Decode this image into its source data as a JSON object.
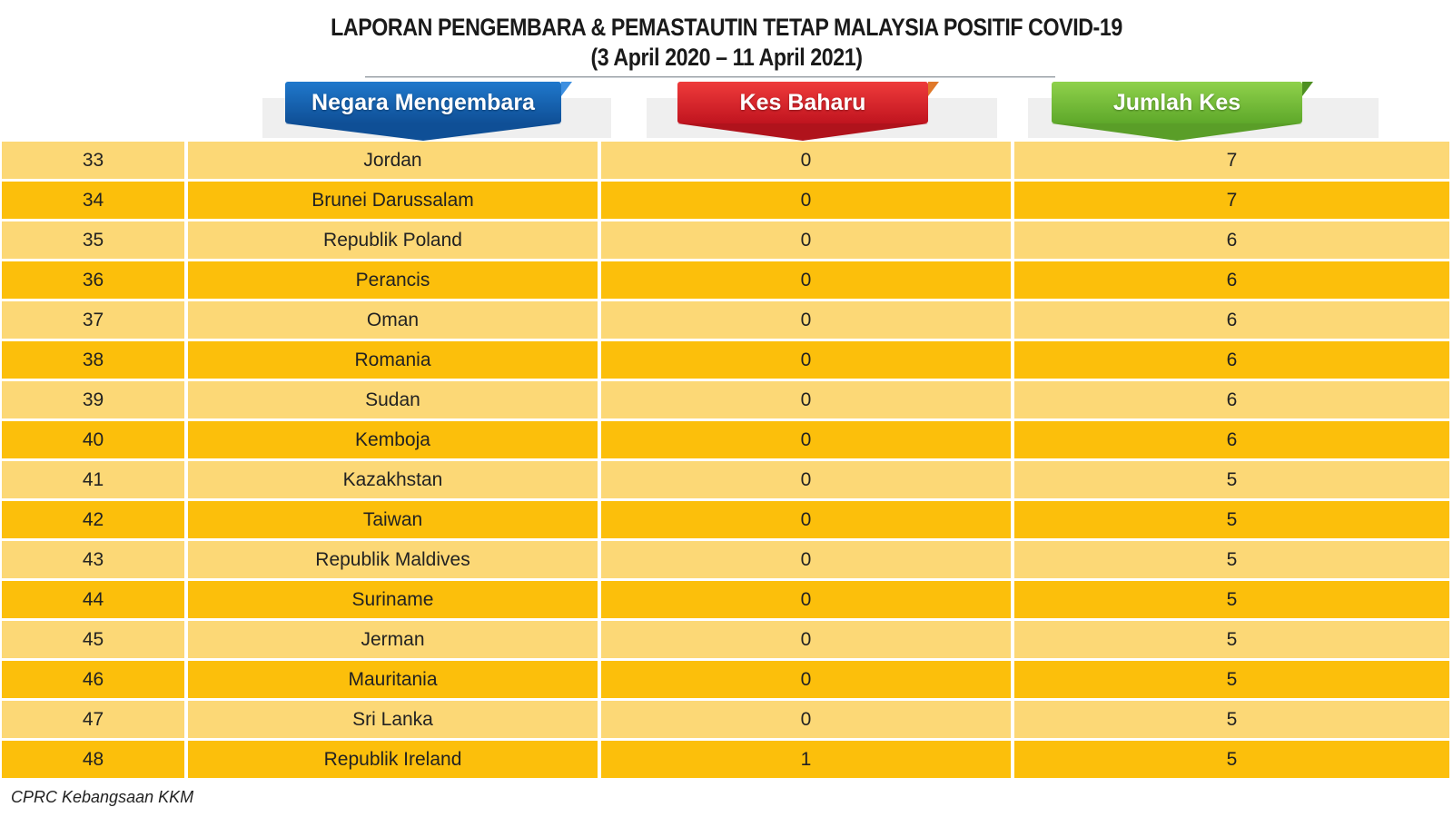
{
  "title": {
    "line1": "LAPORAN PENGEMBARA & PEMASTAUTIN TETAP MALAYSIA POSITIF COVID-19",
    "line2": "(3 April 2020 – 11 April 2021)"
  },
  "headers": {
    "country": "Negara Mengembara",
    "new_cases": "Kes Baharu",
    "total_cases": "Jumlah Kes"
  },
  "colors": {
    "blue_banner": "#1565b8",
    "red_banner": "#d8202b",
    "green_banner": "#79bd3a",
    "row_light": "#fcd876",
    "row_dark": "#fcbf0b"
  },
  "rows": [
    {
      "no": "33",
      "country": "Jordan",
      "new": "0",
      "total": "7"
    },
    {
      "no": "34",
      "country": "Brunei Darussalam",
      "new": "0",
      "total": "7"
    },
    {
      "no": "35",
      "country": "Republik Poland",
      "new": "0",
      "total": "6"
    },
    {
      "no": "36",
      "country": "Perancis",
      "new": "0",
      "total": "6"
    },
    {
      "no": "37",
      "country": "Oman",
      "new": "0",
      "total": "6"
    },
    {
      "no": "38",
      "country": "Romania",
      "new": "0",
      "total": "6"
    },
    {
      "no": "39",
      "country": "Sudan",
      "new": "0",
      "total": "6"
    },
    {
      "no": "40",
      "country": "Kemboja",
      "new": "0",
      "total": "6"
    },
    {
      "no": "41",
      "country": "Kazakhstan",
      "new": "0",
      "total": "5"
    },
    {
      "no": "42",
      "country": "Taiwan",
      "new": "0",
      "total": "5"
    },
    {
      "no": "43",
      "country": "Republik Maldives",
      "new": "0",
      "total": "5"
    },
    {
      "no": "44",
      "country": "Suriname",
      "new": "0",
      "total": "5"
    },
    {
      "no": "45",
      "country": "Jerman",
      "new": "0",
      "total": "5"
    },
    {
      "no": "46",
      "country": "Mauritania",
      "new": "0",
      "total": "5"
    },
    {
      "no": "47",
      "country": "Sri Lanka",
      "new": "0",
      "total": "5"
    },
    {
      "no": "48",
      "country": "Republik Ireland",
      "new": "1",
      "total": "5"
    }
  ],
  "source": "CPRC Kebangsaan KKM"
}
